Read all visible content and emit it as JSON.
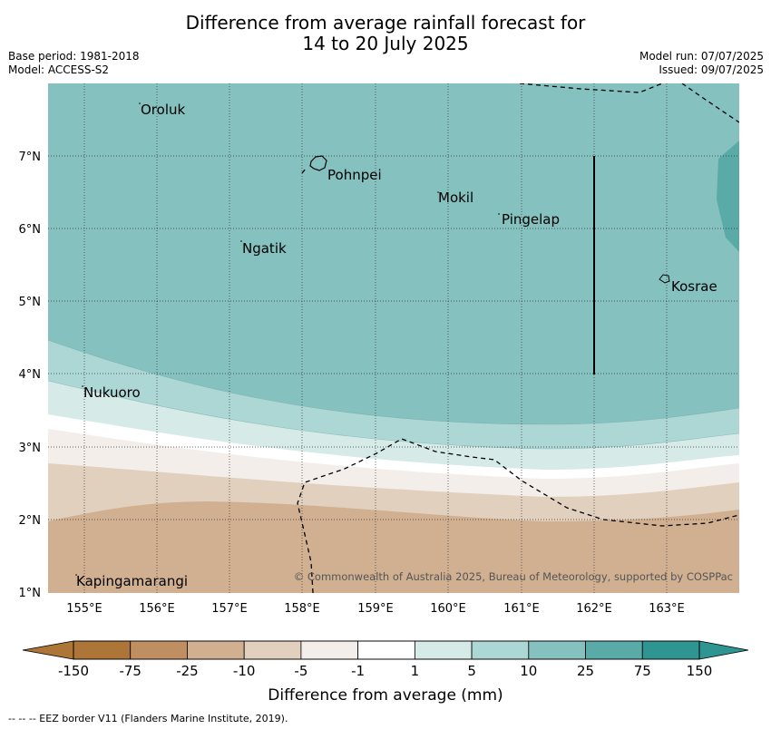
{
  "title_line1": "Difference from average rainfall forecast for",
  "title_line2": "14 to 20 July 2025",
  "base_period": "Base period: 1981-2018",
  "model": "Model: ACCESS-S2",
  "model_run": "Model run: 07/07/2025",
  "issued": "Issued: 09/07/2025",
  "lon_labels": [
    "155°E",
    "156°E",
    "157°E",
    "158°E",
    "159°E",
    "160°E",
    "161°E",
    "162°E",
    "163°E"
  ],
  "lat_labels": [
    "7°N",
    "6°N",
    "5°N",
    "4°N",
    "3°N",
    "2°N",
    "1°N"
  ],
  "places": {
    "oroluk": "Oroluk",
    "pohnpei": "Pohnpei",
    "mokil": "Mokil",
    "pingelap": "Pingelap",
    "ngatik": "Ngatik",
    "kosrae": "Kosrae",
    "nukuoro": "Nukuoro",
    "kapingamarangi": "Kapingamarangi"
  },
  "copyright": "© Commonwealth of Australia 2025, Bureau of Meteorology, supported by COSPPac",
  "colorbar": {
    "ticks": [
      "-150",
      "-75",
      "-25",
      "-10",
      "-5",
      "-1",
      "1",
      "5",
      "10",
      "25",
      "75",
      "150"
    ],
    "colors": [
      "#ad7538",
      "#bf8f62",
      "#d1b092",
      "#e2d0bf",
      "#f3eee9",
      "#ffffff",
      "#d6eae8",
      "#add7d5",
      "#84c1bf",
      "#5aaaa8",
      "#2f9593"
    ],
    "label": "Difference from average (mm)"
  },
  "eez_note": "--  --  -- EEZ border V11 (Flanders Marine Institute, 2019)."
}
